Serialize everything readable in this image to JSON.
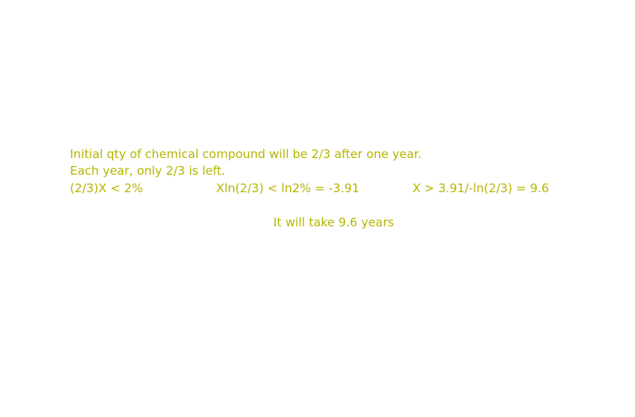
{
  "text": {
    "line1": "Initial qty of chemical compound will be 2/3 after one year.",
    "line2": "Each year, only 2/3 is left.",
    "equations": [
      "(2/3)X < 2%",
      "Xln(2/3) < ln2% = -3.91",
      "X > 3.91/-ln(2/3) = 9.6"
    ],
    "conclusion": "It will take 9.6 years"
  },
  "colors": {
    "text": "#b5b500",
    "background": "#ffffff"
  }
}
